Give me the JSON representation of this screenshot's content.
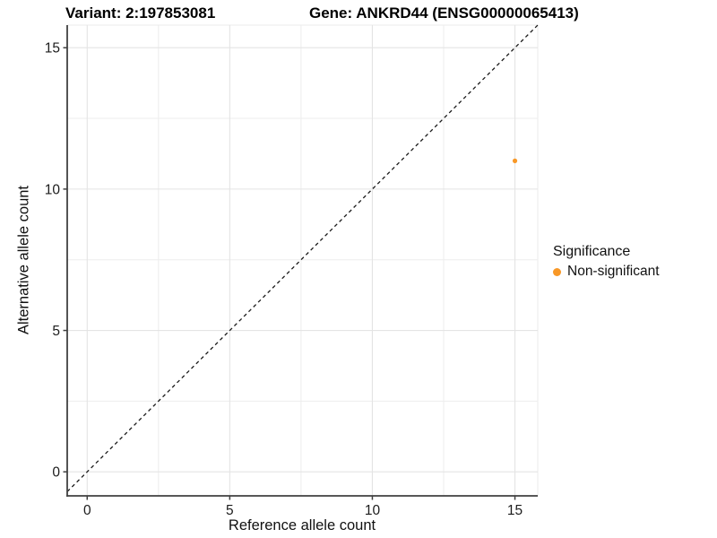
{
  "titles": {
    "variant": "Variant: 2:197853081",
    "gene": "Gene: ANKRD44 (ENSG00000065413)"
  },
  "chart_data": {
    "type": "scatter",
    "xlabel": "Reference allele count",
    "ylabel": "Alternative allele count",
    "xlim": [
      -0.7,
      15.8
    ],
    "ylim": [
      -0.85,
      15.8
    ],
    "x_ticks": [
      0,
      5,
      10,
      15
    ],
    "y_ticks": [
      0,
      5,
      10,
      15
    ],
    "x_minor_ticks": [
      2.5,
      7.5,
      12.5
    ],
    "y_minor_ticks": [
      2.5,
      7.5,
      12.5
    ],
    "grid": true,
    "points": [
      {
        "x": 15,
        "y": 11,
        "series": "Non-significant",
        "color": "#F89827"
      }
    ],
    "identity_line": {
      "style": "dashed",
      "equation": "y = x",
      "color": "#1a1a1a"
    },
    "legend": {
      "title": "Significance",
      "position": "right",
      "entries": [
        {
          "label": "Non-significant",
          "color": "#F89827"
        }
      ]
    }
  },
  "colors": {
    "background": "#ffffff",
    "axis_line": "#404040",
    "tick_label": "#1c1c1c",
    "grid_major": "#e4e4e4",
    "grid_minor": "#ededed",
    "panel_border": "#ebebeb",
    "point_orange": "#F89827"
  }
}
